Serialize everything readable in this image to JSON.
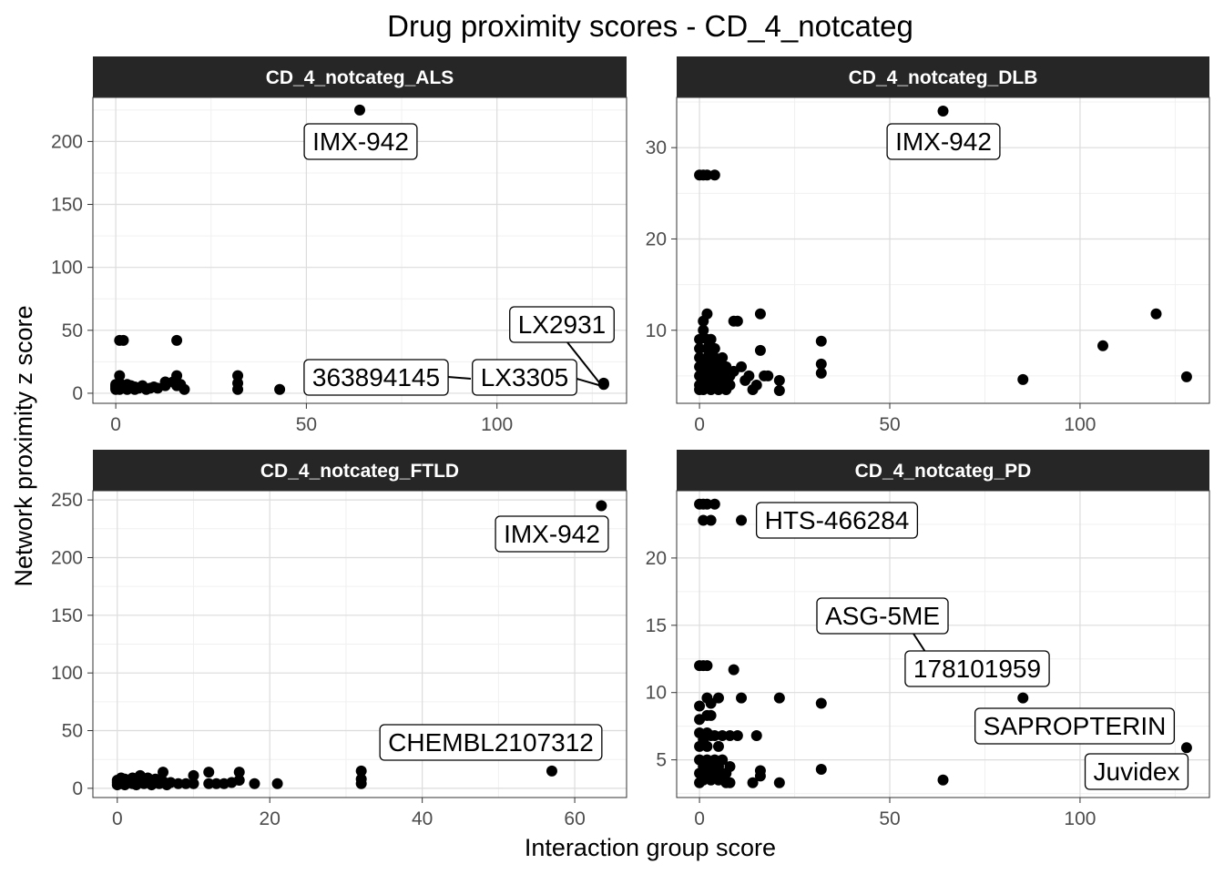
{
  "chart_data": {
    "type": "scatter",
    "title": "Drug proximity scores - CD_4_notcateg",
    "xlabel": "Interaction group score",
    "ylabel": "Network proximity z score",
    "grid": true,
    "panels": [
      {
        "strip": "CD_4_notcateg_ALS",
        "xlim": [
          -6,
          134
        ],
        "ylim": [
          -8,
          235
        ],
        "xticks": [
          0,
          50,
          100
        ],
        "yticks": [
          0,
          50,
          100,
          150,
          200
        ],
        "points": [
          [
            0,
            3
          ],
          [
            0,
            4
          ],
          [
            0,
            5
          ],
          [
            0,
            6
          ],
          [
            0,
            7
          ],
          [
            1,
            3
          ],
          [
            1,
            5
          ],
          [
            1,
            8
          ],
          [
            1,
            42
          ],
          [
            1,
            14
          ],
          [
            2,
            42
          ],
          [
            2,
            4
          ],
          [
            2,
            6
          ],
          [
            3,
            3
          ],
          [
            3,
            5
          ],
          [
            3,
            7
          ],
          [
            4,
            4
          ],
          [
            4,
            6
          ],
          [
            5,
            3
          ],
          [
            5,
            5
          ],
          [
            6,
            4
          ],
          [
            7,
            6
          ],
          [
            8,
            3
          ],
          [
            9,
            4
          ],
          [
            10,
            5
          ],
          [
            11,
            4
          ],
          [
            13,
            6
          ],
          [
            13,
            9
          ],
          [
            15,
            9
          ],
          [
            16,
            42
          ],
          [
            16,
            14
          ],
          [
            16,
            6
          ],
          [
            17,
            7
          ],
          [
            18,
            3
          ],
          [
            32,
            14
          ],
          [
            32,
            8
          ],
          [
            32,
            3
          ],
          [
            43,
            3
          ],
          [
            64,
            225
          ],
          [
            128,
            7
          ],
          [
            128,
            8
          ]
        ],
        "labels": [
          "IMX-942",
          "LX2931",
          "363894145",
          "LX3305"
        ]
      },
      {
        "strip": "CD_4_notcateg_DLB",
        "xlim": [
          -6,
          134
        ],
        "ylim": [
          2,
          35.5
        ],
        "xticks": [
          0,
          50,
          100
        ],
        "yticks": [
          10,
          20,
          30
        ],
        "points": [
          [
            0,
            27
          ],
          [
            1,
            27
          ],
          [
            2,
            27
          ],
          [
            4,
            27
          ],
          [
            0,
            3.5
          ],
          [
            0,
            4
          ],
          [
            0,
            5
          ],
          [
            0,
            6
          ],
          [
            0,
            7
          ],
          [
            0,
            8
          ],
          [
            0,
            9
          ],
          [
            1,
            3.5
          ],
          [
            1,
            4.5
          ],
          [
            1,
            5.5
          ],
          [
            1,
            6.5
          ],
          [
            1,
            11
          ],
          [
            1,
            10
          ],
          [
            2,
            4
          ],
          [
            2,
            5
          ],
          [
            2,
            6
          ],
          [
            2,
            7
          ],
          [
            2,
            8
          ],
          [
            2,
            9
          ],
          [
            2,
            11.8
          ],
          [
            3,
            3.5
          ],
          [
            3,
            5
          ],
          [
            3,
            6.5
          ],
          [
            3,
            7.5
          ],
          [
            3,
            9
          ],
          [
            4,
            4
          ],
          [
            4,
            5
          ],
          [
            4,
            6
          ],
          [
            4,
            7
          ],
          [
            4,
            8
          ],
          [
            5,
            3.5
          ],
          [
            5,
            5
          ],
          [
            5,
            6
          ],
          [
            6,
            4
          ],
          [
            6,
            5
          ],
          [
            6,
            7
          ],
          [
            7,
            3.5
          ],
          [
            7,
            4.5
          ],
          [
            7,
            6
          ],
          [
            8,
            4
          ],
          [
            8,
            5
          ],
          [
            9,
            5.5
          ],
          [
            9,
            11
          ],
          [
            10,
            11
          ],
          [
            11,
            6
          ],
          [
            12,
            4.5
          ],
          [
            13,
            5
          ],
          [
            14,
            3.5
          ],
          [
            15,
            4
          ],
          [
            16,
            7.8
          ],
          [
            16,
            11.8
          ],
          [
            17,
            5
          ],
          [
            18,
            5
          ],
          [
            21,
            4.5
          ],
          [
            21,
            3.4
          ],
          [
            32,
            8.8
          ],
          [
            32,
            6.3
          ],
          [
            32,
            5.3
          ],
          [
            64,
            34
          ],
          [
            85,
            4.6
          ],
          [
            106,
            8.3
          ],
          [
            120,
            11.8
          ],
          [
            128,
            4.9
          ]
        ],
        "labels": [
          "IMX-942"
        ]
      },
      {
        "strip": "CD_4_notcateg_FTLD",
        "xlim": [
          -3.2,
          66.8
        ],
        "ylim": [
          -8,
          258
        ],
        "xticks": [
          0,
          20,
          40,
          60
        ],
        "yticks": [
          0,
          50,
          100,
          150,
          200,
          250
        ],
        "points": [
          [
            0,
            3
          ],
          [
            0,
            5
          ],
          [
            0,
            7
          ],
          [
            0.5,
            4
          ],
          [
            0.5,
            9
          ],
          [
            1,
            3
          ],
          [
            1,
            6
          ],
          [
            1,
            8
          ],
          [
            1.5,
            5
          ],
          [
            2,
            4
          ],
          [
            2,
            7
          ],
          [
            2,
            9
          ],
          [
            2.5,
            3
          ],
          [
            3,
            5
          ],
          [
            3,
            8
          ],
          [
            3,
            11
          ],
          [
            3.5,
            4
          ],
          [
            4,
            6
          ],
          [
            4,
            9
          ],
          [
            4.5,
            3
          ],
          [
            5,
            5
          ],
          [
            5,
            8
          ],
          [
            5.5,
            4
          ],
          [
            6,
            6
          ],
          [
            6,
            14
          ],
          [
            6.5,
            3
          ],
          [
            7,
            5
          ],
          [
            8,
            4
          ],
          [
            9,
            4
          ],
          [
            10,
            4
          ],
          [
            10,
            11
          ],
          [
            12,
            4
          ],
          [
            12,
            14
          ],
          [
            13,
            4
          ],
          [
            14,
            4
          ],
          [
            15,
            5
          ],
          [
            16,
            14
          ],
          [
            16,
            7
          ],
          [
            18,
            4
          ],
          [
            21,
            4
          ],
          [
            32,
            15
          ],
          [
            32,
            8
          ],
          [
            32,
            4
          ],
          [
            57,
            15
          ],
          [
            63.5,
            245
          ]
        ],
        "labels": [
          "IMX-942",
          "CHEMBL2107312"
        ]
      },
      {
        "strip": "CD_4_notcateg_PD",
        "xlim": [
          -6,
          134
        ],
        "ylim": [
          2.2,
          25
        ],
        "xticks": [
          0,
          50,
          100
        ],
        "yticks": [
          5,
          10,
          15,
          20
        ],
        "points": [
          [
            0,
            24
          ],
          [
            1,
            24
          ],
          [
            2,
            24
          ],
          [
            4,
            24
          ],
          [
            1,
            22.8
          ],
          [
            3,
            22.8
          ],
          [
            11,
            22.8
          ],
          [
            0,
            3.3
          ],
          [
            0,
            4
          ],
          [
            0,
            5
          ],
          [
            0,
            6
          ],
          [
            0,
            7
          ],
          [
            0,
            8
          ],
          [
            0,
            9
          ],
          [
            0,
            12
          ],
          [
            1,
            12
          ],
          [
            2,
            12
          ],
          [
            1,
            3.5
          ],
          [
            1,
            4.5
          ],
          [
            1,
            6.5
          ],
          [
            2,
            4
          ],
          [
            2,
            5
          ],
          [
            2,
            6
          ],
          [
            2,
            7
          ],
          [
            2,
            8.3
          ],
          [
            2,
            9.6
          ],
          [
            3,
            3.5
          ],
          [
            3,
            4.5
          ],
          [
            3,
            6.8
          ],
          [
            3,
            8.3
          ],
          [
            3,
            9.2
          ],
          [
            4,
            4
          ],
          [
            4,
            5
          ],
          [
            4,
            6.8
          ],
          [
            5,
            3.5
          ],
          [
            5,
            4.5
          ],
          [
            5,
            6
          ],
          [
            5,
            9.6
          ],
          [
            6,
            4
          ],
          [
            6,
            5
          ],
          [
            6,
            6.8
          ],
          [
            7,
            3.3
          ],
          [
            7,
            4
          ],
          [
            8,
            3.3
          ],
          [
            8,
            4.5
          ],
          [
            8,
            6.8
          ],
          [
            9,
            11.7
          ],
          [
            10,
            6.8
          ],
          [
            11,
            9.6
          ],
          [
            14,
            3.3
          ],
          [
            15,
            6.8
          ],
          [
            16,
            4.2
          ],
          [
            16,
            3.8
          ],
          [
            21,
            9.6
          ],
          [
            21,
            3.3
          ],
          [
            32,
            9.2
          ],
          [
            32,
            4.3
          ],
          [
            64,
            3.5
          ],
          [
            85,
            9.6
          ],
          [
            128,
            5.9
          ]
        ],
        "labels": [
          "HTS-466284",
          "ASG-5ME",
          "178101959",
          "SAPROPTERIN",
          "Juvidex"
        ]
      }
    ]
  }
}
